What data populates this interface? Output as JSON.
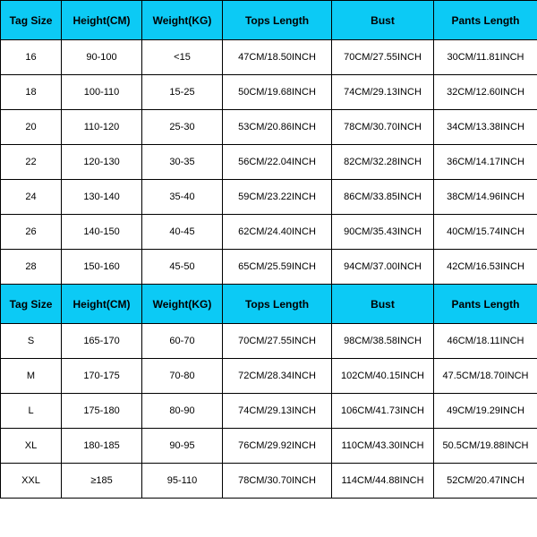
{
  "header_bg": "#0ccaf5",
  "header_fontsize": 12,
  "cell_fontsize": 11,
  "columns": [
    "Tag Size",
    "Height(CM)",
    "Weight(KG)",
    "Tops Length",
    "Bust",
    "Pants Length"
  ],
  "rows1": [
    [
      "16",
      "90-100",
      "<15",
      "47CM/18.50INCH",
      "70CM/27.55INCH",
      "30CM/11.81INCH"
    ],
    [
      "18",
      "100-110",
      "15-25",
      "50CM/19.68INCH",
      "74CM/29.13INCH",
      "32CM/12.60INCH"
    ],
    [
      "20",
      "110-120",
      "25-30",
      "53CM/20.86INCH",
      "78CM/30.70INCH",
      "34CM/13.38INCH"
    ],
    [
      "22",
      "120-130",
      "30-35",
      "56CM/22.04INCH",
      "82CM/32.28INCH",
      "36CM/14.17INCH"
    ],
    [
      "24",
      "130-140",
      "35-40",
      "59CM/23.22INCH",
      "86CM/33.85INCH",
      "38CM/14.96INCH"
    ],
    [
      "26",
      "140-150",
      "40-45",
      "62CM/24.40INCH",
      "90CM/35.43INCH",
      "40CM/15.74INCH"
    ],
    [
      "28",
      "150-160",
      "45-50",
      "65CM/25.59INCH",
      "94CM/37.00INCH",
      "42CM/16.53INCH"
    ]
  ],
  "rows2": [
    [
      "S",
      "165-170",
      "60-70",
      "70CM/27.55INCH",
      "98CM/38.58INCH",
      "46CM/18.11INCH"
    ],
    [
      "M",
      "170-175",
      "70-80",
      "72CM/28.34INCH",
      "102CM/40.15INCH",
      "47.5CM/18.70INCH"
    ],
    [
      "L",
      "175-180",
      "80-90",
      "74CM/29.13INCH",
      "106CM/41.73INCH",
      "49CM/19.29INCH"
    ],
    [
      "XL",
      "180-185",
      "90-95",
      "76CM/29.92INCH",
      "110CM/43.30INCH",
      "50.5CM/19.88INCH"
    ],
    [
      "XXL",
      "≥185",
      "95-110",
      "78CM/30.70INCH",
      "114CM/44.88INCH",
      "52CM/20.47INCH"
    ]
  ]
}
